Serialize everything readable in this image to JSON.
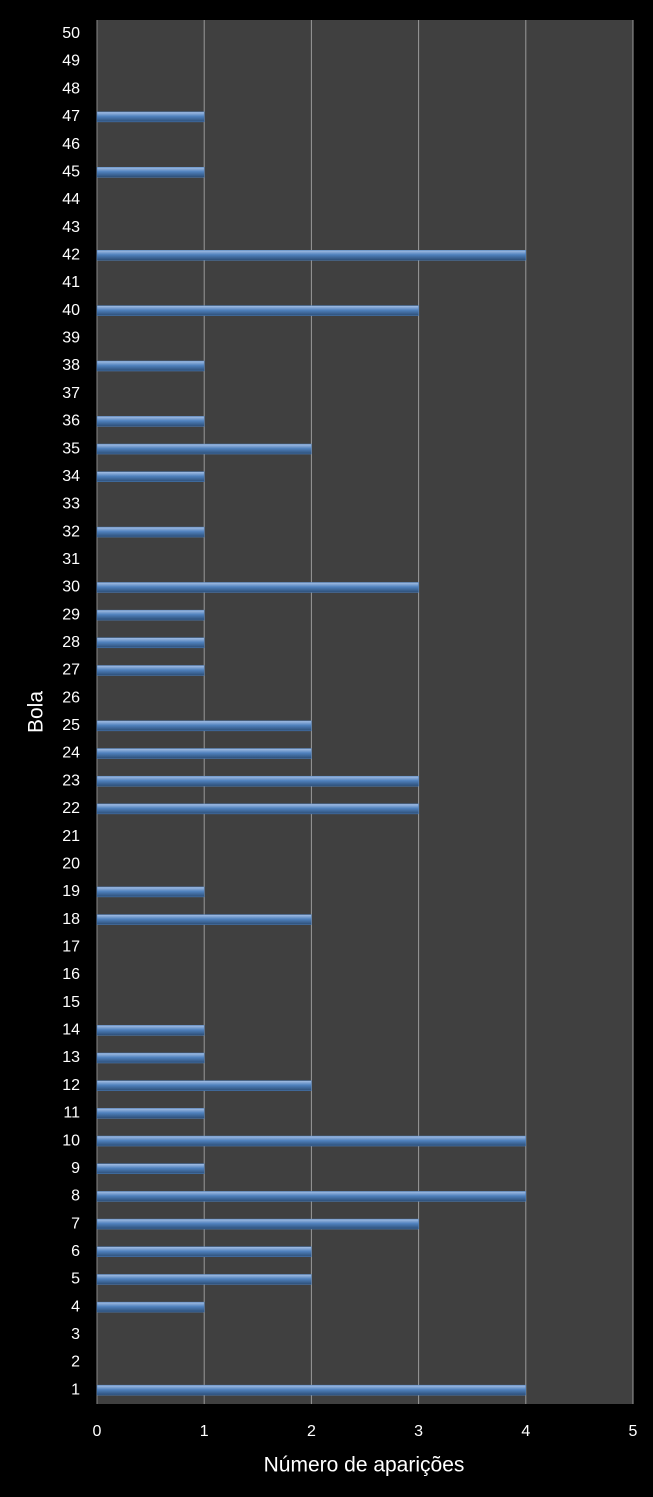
{
  "chart_data": {
    "type": "bar",
    "orientation": "horizontal",
    "x_label": "Número de aparições",
    "y_label": "Bola",
    "categories": [
      "1",
      "2",
      "3",
      "4",
      "5",
      "6",
      "7",
      "8",
      "9",
      "10",
      "11",
      "12",
      "13",
      "14",
      "15",
      "16",
      "17",
      "18",
      "19",
      "20",
      "21",
      "22",
      "23",
      "24",
      "25",
      "26",
      "27",
      "28",
      "29",
      "30",
      "31",
      "32",
      "33",
      "34",
      "35",
      "36",
      "37",
      "38",
      "39",
      "40",
      "41",
      "42",
      "43",
      "44",
      "45",
      "46",
      "47",
      "48",
      "49",
      "50"
    ],
    "values": [
      4,
      0,
      0,
      1,
      2,
      2,
      3,
      4,
      1,
      4,
      1,
      2,
      1,
      1,
      0,
      0,
      0,
      2,
      1,
      0,
      0,
      3,
      3,
      2,
      2,
      0,
      1,
      1,
      1,
      3,
      0,
      1,
      0,
      1,
      2,
      1,
      0,
      1,
      0,
      3,
      0,
      4,
      0,
      0,
      1,
      0,
      1,
      0,
      0,
      0
    ],
    "color": "#4f81bd",
    "xlim": [
      0,
      5
    ],
    "xticks": [
      0,
      1,
      2,
      3,
      4,
      5
    ],
    "grid": true
  }
}
